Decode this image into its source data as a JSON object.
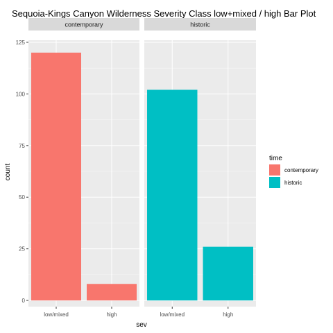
{
  "chart_data": {
    "type": "bar",
    "title": "Sequoia-Kings Canyon Wilderness Severity Class low+mixed / high Bar Plot",
    "xlabel": "sev",
    "ylabel": "count",
    "ylim": [
      -3,
      126
    ],
    "yticks": [
      0,
      25,
      50,
      75,
      100,
      125
    ],
    "categories": [
      "low/mixed",
      "high"
    ],
    "facets": [
      {
        "label": "contemporary",
        "series": "contemporary",
        "values": [
          120,
          8
        ]
      },
      {
        "label": "historic",
        "series": "historic",
        "values": [
          102,
          26
        ]
      }
    ],
    "legend": {
      "title": "time",
      "placement": "right",
      "entries": [
        {
          "name": "contemporary",
          "color": "#F8766D"
        },
        {
          "name": "historic",
          "color": "#00BFC4"
        }
      ]
    },
    "grid": true,
    "colors": {
      "panel_bg": "#EBEBEB",
      "grid_major": "#FFFFFF",
      "strip_bg": "#D9D9D9"
    }
  }
}
